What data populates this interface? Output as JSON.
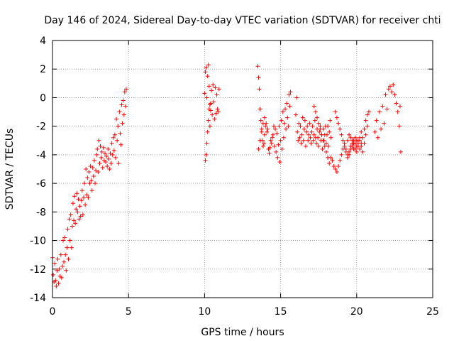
{
  "chart_data": {
    "type": "scatter",
    "title": "Day 146 of 2024, Sidereal Day-to-day VTEC variation (SDTVAR) for receiver chti",
    "xlabel": "GPS time / hours",
    "ylabel": "SDTVAR / TECUs",
    "xlim": [
      0,
      25
    ],
    "ylim": [
      -14,
      4
    ],
    "xticks": [
      0,
      5,
      10,
      15,
      20,
      25
    ],
    "yticks": [
      -14,
      -12,
      -10,
      -8,
      -6,
      -4,
      -2,
      0,
      2,
      4
    ],
    "grid": true,
    "marker": "+",
    "series": [
      {
        "name": "SDTVAR",
        "color": "#ff0000",
        "points": [
          [
            0.0,
            -11.2
          ],
          [
            0.05,
            -12.4
          ],
          [
            0.1,
            -12.9
          ],
          [
            0.15,
            -11.6
          ],
          [
            0.2,
            -12.8
          ],
          [
            0.25,
            -13.2
          ],
          [
            0.3,
            -12.1
          ],
          [
            0.35,
            -11.3
          ],
          [
            0.4,
            -13.0
          ],
          [
            0.45,
            -12.0
          ],
          [
            0.5,
            -12.5
          ],
          [
            0.55,
            -11.0
          ],
          [
            0.6,
            -12.6
          ],
          [
            0.65,
            -11.8
          ],
          [
            0.7,
            -10.0
          ],
          [
            0.75,
            -11.5
          ],
          [
            0.8,
            -9.8
          ],
          [
            0.85,
            -11.0
          ],
          [
            0.9,
            -12.1
          ],
          [
            0.95,
            -10.5
          ],
          [
            1.0,
            -9.2
          ],
          [
            1.05,
            -11.3
          ],
          [
            1.1,
            -8.5
          ],
          [
            1.15,
            -10.0
          ],
          [
            1.2,
            -8.2
          ],
          [
            1.25,
            -10.5
          ],
          [
            1.3,
            -9.0
          ],
          [
            1.35,
            -7.4
          ],
          [
            1.4,
            -8.6
          ],
          [
            1.45,
            -6.9
          ],
          [
            1.5,
            -8.8
          ],
          [
            1.55,
            -7.8
          ],
          [
            1.6,
            -6.7
          ],
          [
            1.65,
            -8.0
          ],
          [
            1.7,
            -7.1
          ],
          [
            1.75,
            -8.5
          ],
          [
            1.8,
            -7.6
          ],
          [
            1.85,
            -8.3
          ],
          [
            1.9,
            -7.2
          ],
          [
            1.95,
            -6.5
          ],
          [
            2.0,
            -8.2
          ],
          [
            2.05,
            -7.0
          ],
          [
            2.1,
            -6.0
          ],
          [
            2.15,
            -7.5
          ],
          [
            2.2,
            -5.0
          ],
          [
            2.25,
            -6.8
          ],
          [
            2.3,
            -5.6
          ],
          [
            2.35,
            -7.0
          ],
          [
            2.4,
            -5.2
          ],
          [
            2.45,
            -6.0
          ],
          [
            2.5,
            -4.8
          ],
          [
            2.55,
            -5.8
          ],
          [
            2.6,
            -6.5
          ],
          [
            2.65,
            -4.9
          ],
          [
            2.7,
            -5.5
          ],
          [
            2.75,
            -4.4
          ],
          [
            2.8,
            -6.0
          ],
          [
            2.85,
            -5.1
          ],
          [
            2.9,
            -4.0
          ],
          [
            2.95,
            -3.6
          ],
          [
            3.0,
            -5.2
          ],
          [
            3.05,
            -3.0
          ],
          [
            3.1,
            -4.6
          ],
          [
            3.15,
            -3.4
          ],
          [
            3.2,
            -4.2
          ],
          [
            3.25,
            -3.8
          ],
          [
            3.3,
            -4.9
          ],
          [
            3.35,
            -3.5
          ],
          [
            3.4,
            -4.4
          ],
          [
            3.45,
            -3.9
          ],
          [
            3.5,
            -4.5
          ],
          [
            3.55,
            -4.1
          ],
          [
            3.6,
            -4.8
          ],
          [
            3.65,
            -3.6
          ],
          [
            3.7,
            -4.3
          ],
          [
            3.75,
            -5.0
          ],
          [
            3.8,
            -3.9
          ],
          [
            3.85,
            -4.6
          ],
          [
            3.9,
            -3.2
          ],
          [
            3.95,
            -4.0
          ],
          [
            4.0,
            -2.8
          ],
          [
            4.05,
            -3.7
          ],
          [
            4.1,
            -2.6
          ],
          [
            4.15,
            -4.2
          ],
          [
            4.2,
            -1.5
          ],
          [
            4.25,
            -3.0
          ],
          [
            4.3,
            -2.0
          ],
          [
            4.35,
            -4.6
          ],
          [
            4.4,
            -1.0
          ],
          [
            4.45,
            -2.5
          ],
          [
            4.5,
            -3.3
          ],
          [
            4.55,
            -0.5
          ],
          [
            4.6,
            -1.8
          ],
          [
            4.65,
            -0.2
          ],
          [
            4.7,
            -1.2
          ],
          [
            4.75,
            0.4
          ],
          [
            4.8,
            -0.6
          ],
          [
            4.85,
            0.6
          ],
          [
            10.0,
            0.3
          ],
          [
            10.05,
            1.8
          ],
          [
            10.1,
            2.1
          ],
          [
            10.15,
            0.0
          ],
          [
            10.2,
            1.5
          ],
          [
            10.25,
            2.3
          ],
          [
            10.3,
            0.8
          ],
          [
            10.35,
            -0.5
          ],
          [
            10.4,
            -0.9
          ],
          [
            10.45,
            0.5
          ],
          [
            10.5,
            -1.2
          ],
          [
            10.55,
            0.9
          ],
          [
            10.6,
            -0.3
          ],
          [
            10.65,
            -1.5
          ],
          [
            10.7,
            0.7
          ],
          [
            10.75,
            -1.1
          ],
          [
            10.8,
            0.2
          ],
          [
            10.85,
            -0.8
          ],
          [
            10.9,
            -1.0
          ],
          [
            10.95,
            0.6
          ],
          [
            10.05,
            -4.4
          ],
          [
            10.1,
            -4.0
          ],
          [
            10.15,
            -3.2
          ],
          [
            10.2,
            -2.4
          ],
          [
            10.25,
            -1.6
          ],
          [
            10.3,
            -0.8
          ],
          [
            10.35,
            -2.0
          ],
          [
            10.4,
            -0.4
          ],
          [
            13.5,
            2.2
          ],
          [
            13.55,
            1.4
          ],
          [
            13.6,
            0.6
          ],
          [
            13.65,
            -0.8
          ],
          [
            13.7,
            -1.6
          ],
          [
            13.75,
            -2.4
          ],
          [
            13.8,
            -3.0
          ],
          [
            13.85,
            -3.4
          ],
          [
            13.9,
            -3.2
          ],
          [
            13.95,
            -2.6
          ],
          [
            14.0,
            -2.0
          ],
          [
            14.05,
            -1.8
          ],
          [
            14.1,
            -2.4
          ],
          [
            14.15,
            -2.2
          ],
          [
            14.2,
            -3.6
          ],
          [
            14.25,
            -3.9
          ],
          [
            14.3,
            -3.5
          ],
          [
            14.35,
            -3.0
          ],
          [
            14.4,
            -3.2
          ],
          [
            14.45,
            -2.8
          ],
          [
            14.5,
            -2.6
          ],
          [
            14.55,
            -2.0
          ],
          [
            14.6,
            -3.4
          ],
          [
            14.65,
            -2.2
          ],
          [
            14.7,
            -3.8
          ],
          [
            14.75,
            -2.5
          ],
          [
            14.8,
            -4.2
          ],
          [
            14.85,
            -3.3
          ],
          [
            14.9,
            -2.0
          ],
          [
            14.95,
            -4.5
          ],
          [
            15.0,
            -3.0
          ],
          [
            15.05,
            -1.6
          ],
          [
            15.1,
            -3.6
          ],
          [
            15.15,
            -1.0
          ],
          [
            15.2,
            -2.8
          ],
          [
            15.25,
            -1.8
          ],
          [
            15.3,
            -0.8
          ],
          [
            15.35,
            -2.2
          ],
          [
            15.4,
            -0.4
          ],
          [
            15.45,
            -1.4
          ],
          [
            15.5,
            -2.0
          ],
          [
            15.55,
            0.2
          ],
          [
            15.6,
            -0.6
          ],
          [
            15.65,
            0.4
          ],
          [
            13.55,
            -3.6
          ],
          [
            13.65,
            -3.0
          ],
          [
            13.75,
            -2.2
          ],
          [
            13.85,
            -1.8
          ],
          [
            13.95,
            -1.4
          ],
          [
            16.0,
            -1.2
          ],
          [
            16.05,
            0.0
          ],
          [
            16.1,
            -2.4
          ],
          [
            16.15,
            -3.0
          ],
          [
            16.2,
            -1.8
          ],
          [
            16.25,
            -2.8
          ],
          [
            16.3,
            -2.0
          ],
          [
            16.35,
            -3.2
          ],
          [
            16.4,
            -2.6
          ],
          [
            16.45,
            -1.4
          ],
          [
            16.5,
            -3.0
          ],
          [
            16.55,
            -2.2
          ],
          [
            16.6,
            -1.6
          ],
          [
            16.65,
            -3.4
          ],
          [
            16.7,
            -2.4
          ],
          [
            16.75,
            -2.0
          ],
          [
            16.8,
            -3.0
          ],
          [
            16.85,
            -2.6
          ],
          [
            16.9,
            -1.8
          ],
          [
            16.95,
            -2.8
          ],
          [
            17.0,
            -3.2
          ],
          [
            17.05,
            -2.4
          ],
          [
            17.1,
            -2.0
          ],
          [
            17.15,
            -3.0
          ],
          [
            17.2,
            -2.6
          ],
          [
            17.25,
            -1.6
          ],
          [
            17.3,
            -2.8
          ],
          [
            17.35,
            -3.2
          ],
          [
            17.4,
            -2.2
          ],
          [
            17.45,
            -2.8
          ],
          [
            17.5,
            -3.4
          ],
          [
            17.55,
            -2.4
          ],
          [
            17.6,
            -2.0
          ],
          [
            17.65,
            -3.0
          ],
          [
            17.7,
            -2.6
          ],
          [
            17.75,
            -3.6
          ],
          [
            17.8,
            -2.2
          ],
          [
            17.85,
            -3.0
          ],
          [
            17.9,
            -2.6
          ],
          [
            17.95,
            -2.0
          ],
          [
            18.0,
            -3.2
          ],
          [
            18.05,
            -2.6
          ],
          [
            18.1,
            -2.0
          ],
          [
            18.15,
            -3.4
          ],
          [
            18.2,
            -2.4
          ],
          [
            18.25,
            -1.6
          ],
          [
            18.3,
            -2.8
          ],
          [
            17.2,
            -0.6
          ],
          [
            17.3,
            -1.0
          ],
          [
            17.4,
            -1.4
          ],
          [
            17.5,
            -1.8
          ],
          [
            17.6,
            -2.2
          ],
          [
            17.7,
            -2.6
          ],
          [
            17.8,
            -3.0
          ],
          [
            17.9,
            -3.4
          ],
          [
            18.0,
            -3.8
          ],
          [
            18.1,
            -4.2
          ],
          [
            18.2,
            -4.6
          ],
          [
            18.3,
            -4.2
          ],
          [
            18.4,
            -4.4
          ],
          [
            18.5,
            -4.8
          ],
          [
            18.6,
            -5.0
          ],
          [
            18.7,
            -5.2
          ],
          [
            18.8,
            -4.8
          ],
          [
            18.9,
            -4.4
          ],
          [
            19.0,
            -4.0
          ],
          [
            19.1,
            -3.6
          ],
          [
            19.2,
            -3.2
          ],
          [
            19.3,
            -3.6
          ],
          [
            19.4,
            -4.0
          ],
          [
            19.5,
            -3.8
          ],
          [
            19.6,
            -3.4
          ],
          [
            19.7,
            -3.0
          ],
          [
            19.8,
            -3.2
          ],
          [
            19.9,
            -3.6
          ],
          [
            20.0,
            -3.8
          ],
          [
            20.1,
            -3.4
          ],
          [
            20.2,
            -3.0
          ],
          [
            20.3,
            -3.4
          ],
          [
            20.4,
            -3.8
          ],
          [
            20.5,
            -3.2
          ],
          [
            20.6,
            -2.6
          ],
          [
            20.7,
            -2.0
          ],
          [
            20.8,
            -1.0
          ],
          [
            18.6,
            -1.0
          ],
          [
            18.7,
            -1.4
          ],
          [
            18.8,
            -1.8
          ],
          [
            18.9,
            -2.2
          ],
          [
            19.0,
            -2.6
          ],
          [
            19.1,
            -3.0
          ],
          [
            19.2,
            -3.4
          ],
          [
            19.3,
            -3.8
          ],
          [
            19.4,
            -4.2
          ],
          [
            19.5,
            -4.0
          ],
          [
            19.6,
            -3.6
          ],
          [
            19.7,
            -3.4
          ],
          [
            19.8,
            -3.0
          ],
          [
            19.9,
            -2.8
          ],
          [
            20.0,
            -3.0
          ],
          [
            20.1,
            -3.2
          ],
          [
            20.2,
            -2.8
          ],
          [
            20.3,
            -2.4
          ],
          [
            20.4,
            -2.8
          ],
          [
            20.5,
            -2.2
          ],
          [
            20.6,
            -1.6
          ],
          [
            20.7,
            -1.2
          ],
          [
            19.4,
            -3.0
          ],
          [
            19.5,
            -2.6
          ],
          [
            19.6,
            -2.8
          ],
          [
            19.7,
            -3.2
          ],
          [
            19.8,
            -3.6
          ],
          [
            19.9,
            -3.2
          ],
          [
            20.0,
            -3.4
          ],
          [
            20.1,
            -3.0
          ],
          [
            20.2,
            -3.6
          ],
          [
            20.3,
            -3.2
          ],
          [
            21.2,
            -2.4
          ],
          [
            21.3,
            -1.6
          ],
          [
            21.4,
            -2.8
          ],
          [
            21.5,
            -1.0
          ],
          [
            21.6,
            -2.2
          ],
          [
            21.7,
            -0.6
          ],
          [
            21.8,
            -1.8
          ],
          [
            21.9,
            0.2
          ],
          [
            22.0,
            -0.8
          ],
          [
            22.1,
            0.6
          ],
          [
            22.2,
            0.8
          ],
          [
            22.3,
            0.4
          ],
          [
            22.4,
            0.9
          ],
          [
            22.5,
            0.2
          ],
          [
            22.6,
            -0.4
          ],
          [
            22.7,
            -1.0
          ],
          [
            22.8,
            -2.0
          ],
          [
            22.85,
            -0.6
          ],
          [
            22.9,
            -3.8
          ]
        ]
      }
    ]
  }
}
